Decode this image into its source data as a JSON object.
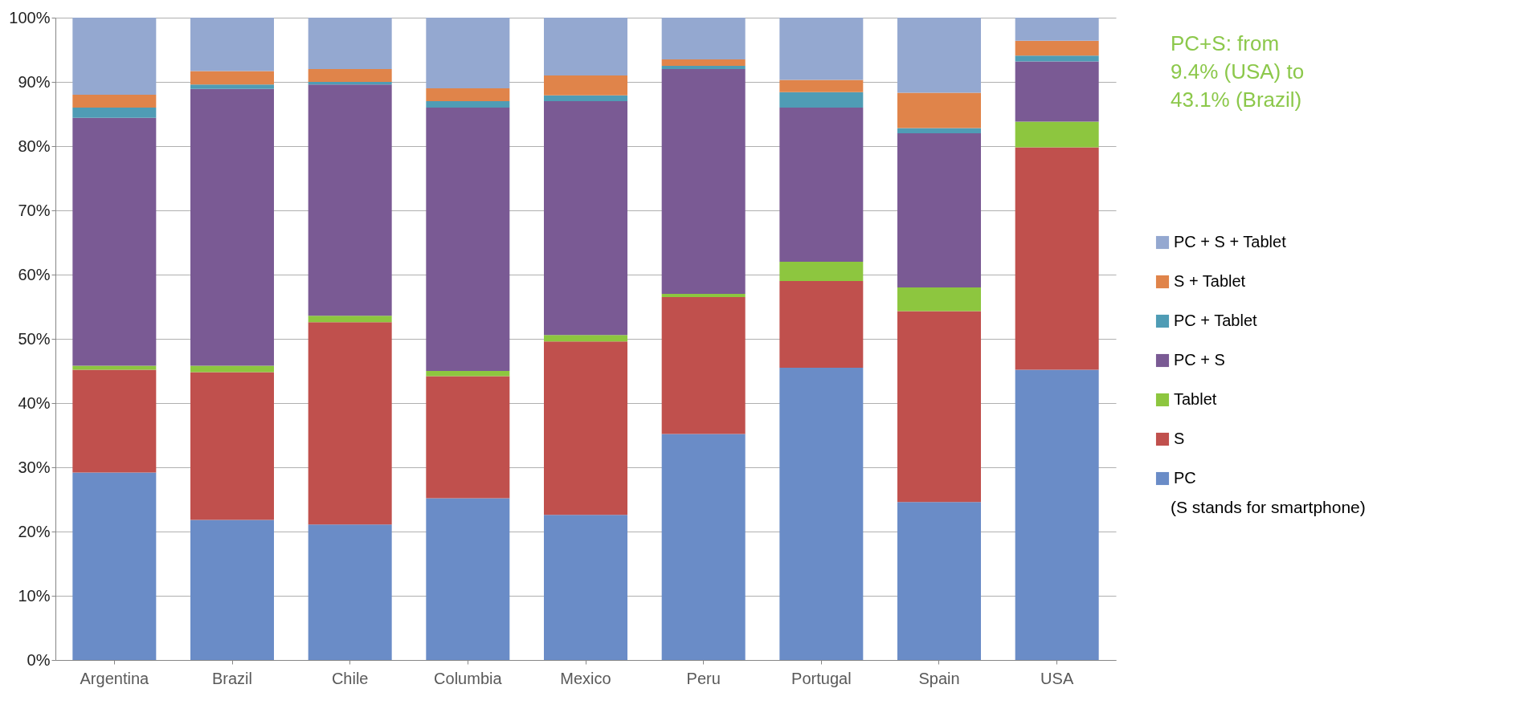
{
  "chart_data": {
    "type": "bar",
    "stacked": true,
    "categories": [
      "Argentina",
      "Brazil",
      "Chile",
      "Columbia",
      "Mexico",
      "Peru",
      "Portugal",
      "Spain",
      "USA"
    ],
    "series": [
      {
        "name": "PC",
        "color": "#6a8cc7",
        "values": [
          29.2,
          21.8,
          21.1,
          25.2,
          22.6,
          35.2,
          45.5,
          24.6,
          45.2
        ]
      },
      {
        "name": "S",
        "color": "#c0504d",
        "values": [
          16,
          23,
          31.5,
          19,
          27,
          21.3,
          13.5,
          29.7,
          34.6
        ]
      },
      {
        "name": "Tablet",
        "color": "#8dc63f",
        "values": [
          0.6,
          1,
          1,
          0.8,
          1,
          0.5,
          3,
          3.7,
          4
        ]
      },
      {
        "name": "PC + S",
        "color": "#7a5a94",
        "values": [
          38.6,
          43.1,
          36,
          41,
          36.4,
          35,
          24,
          24,
          9.4
        ]
      },
      {
        "name": "PC + Tablet",
        "color": "#4f9cb5",
        "values": [
          1.6,
          0.7,
          0.4,
          1,
          0.9,
          0.5,
          2.4,
          0.8,
          0.9
        ]
      },
      {
        "name": "S + Tablet",
        "color": "#e0844a",
        "values": [
          2,
          2.1,
          2,
          2,
          3.1,
          1,
          1.9,
          5.5,
          2.3
        ]
      },
      {
        "name": "PC +  S + Tablet",
        "color": "#94a8d0",
        "values": [
          12,
          8.3,
          8,
          11,
          9,
          6.5,
          9.7,
          11.7,
          3.6
        ]
      }
    ],
    "ylim": [
      0,
      100
    ],
    "yticks": [
      {
        "value": 0,
        "label": "0%"
      },
      {
        "value": 10,
        "label": "10%"
      },
      {
        "value": 20,
        "label": "20%"
      },
      {
        "value": 30,
        "label": "30%"
      },
      {
        "value": 40,
        "label": "40%"
      },
      {
        "value": 50,
        "label": "50%"
      },
      {
        "value": 60,
        "label": "60%"
      },
      {
        "value": 70,
        "label": "70%"
      },
      {
        "value": 80,
        "label": "80%"
      },
      {
        "value": 90,
        "label": "90%"
      },
      {
        "value": 100,
        "label": "100%"
      }
    ],
    "grid": "y",
    "legend": "right",
    "annotations": [
      "PC+S: from 9.4% (USA) to 43.1% (Brazil)",
      "(S stands for smartphone)"
    ]
  }
}
